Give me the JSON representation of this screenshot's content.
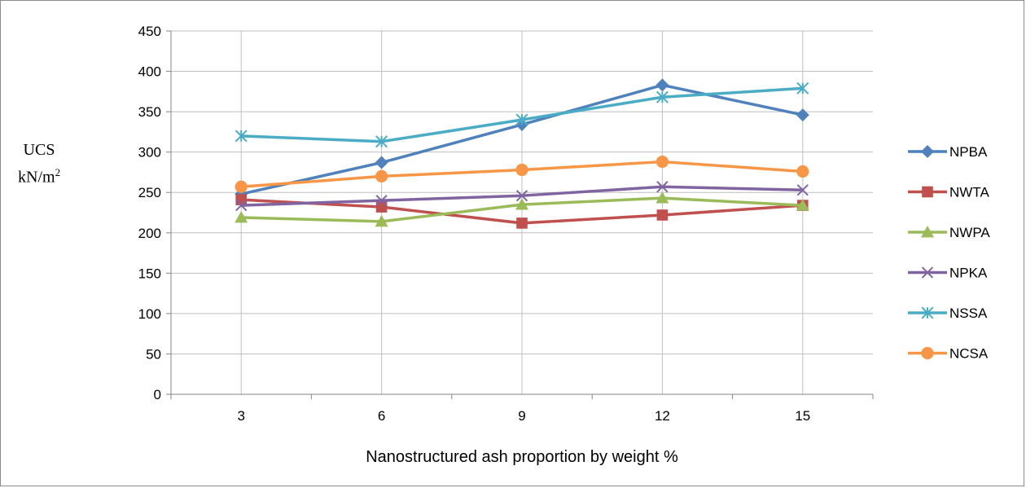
{
  "chart_data": {
    "type": "line",
    "title": "",
    "xlabel": "Nanostructured ash proportion by weight %",
    "ylabel_line1": "UCS",
    "ylabel_line2_prefix": "kN/m",
    "ylabel_line2_sup": "2",
    "x": [
      3,
      6,
      9,
      12,
      15
    ],
    "ylim": [
      0,
      450
    ],
    "yticks": [
      0,
      50,
      100,
      150,
      200,
      250,
      300,
      350,
      400,
      450
    ],
    "grid": true,
    "legend_position": "right",
    "series": [
      {
        "name": "NPBA",
        "values": [
          248,
          287,
          334,
          383,
          346
        ],
        "color": "#4F81BD",
        "marker": "diamond"
      },
      {
        "name": "NWTA",
        "values": [
          241,
          232,
          212,
          222,
          234
        ],
        "color": "#C0504D",
        "marker": "square"
      },
      {
        "name": "NWPA",
        "values": [
          219,
          214,
          235,
          243,
          234
        ],
        "color": "#9BBB59",
        "marker": "triangle"
      },
      {
        "name": "NPKA",
        "values": [
          234,
          240,
          246,
          257,
          253
        ],
        "color": "#8064A2",
        "marker": "x"
      },
      {
        "name": "NSSA",
        "values": [
          320,
          313,
          340,
          368,
          379
        ],
        "color": "#4BACC6",
        "marker": "star"
      },
      {
        "name": "NCSA",
        "values": [
          257,
          270,
          278,
          288,
          276
        ],
        "color": "#F79646",
        "marker": "circle"
      }
    ]
  }
}
